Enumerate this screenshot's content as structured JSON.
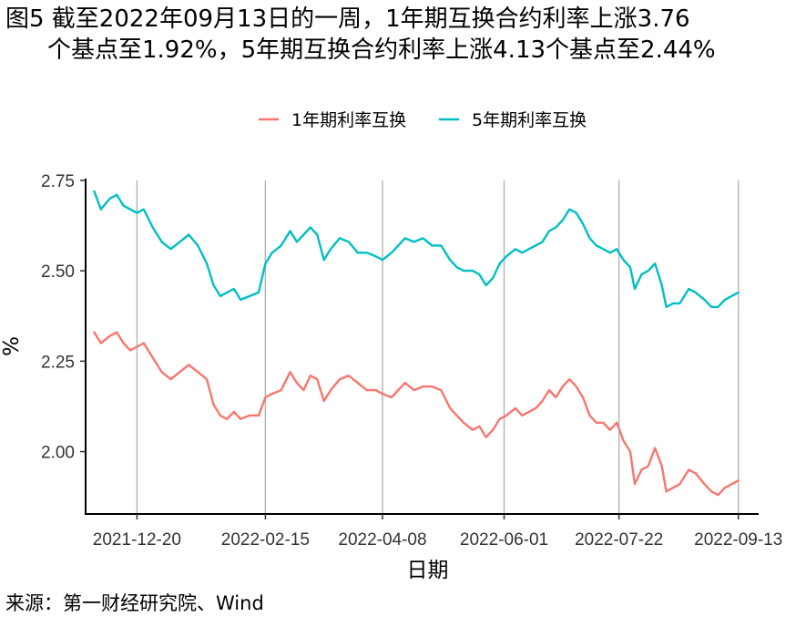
{
  "title": {
    "line1": "图5  截至2022年09月13日的一周，1年期互换合约利率上涨3.76",
    "line2": "个基点至1.92%，5年期互换合约利率上涨4.13个基点至2.44%"
  },
  "source": "来源：第一财经研究院、Wind",
  "chart_data": {
    "type": "line",
    "xlabel": "日期",
    "ylabel": "%",
    "x_tick_labels": [
      "2021-12-20",
      "2022-02-15",
      "2022-04-08",
      "2022-06-01",
      "2022-07-22",
      "2022-09-13"
    ],
    "y_ticks": [
      2.0,
      2.25,
      2.5,
      2.75
    ],
    "y_tick_labels": [
      "2.00",
      "2.25",
      "2.50",
      "2.75"
    ],
    "ylim": [
      1.83,
      2.77
    ],
    "xlim": [
      "2021-11-28",
      "2022-09-22"
    ],
    "grid": "vertical lines at x ticks",
    "legend_position": "top",
    "series": [
      {
        "name": "1年期利率互换",
        "color": "#F8766D",
        "points": [
          [
            "2021-12-01",
            2.33
          ],
          [
            "2021-12-04",
            2.3
          ],
          [
            "2021-12-08",
            2.32
          ],
          [
            "2021-12-11",
            2.33
          ],
          [
            "2021-12-14",
            2.3
          ],
          [
            "2021-12-17",
            2.28
          ],
          [
            "2021-12-20",
            2.29
          ],
          [
            "2021-12-23",
            2.3
          ],
          [
            "2021-12-27",
            2.26
          ],
          [
            "2021-12-31",
            2.22
          ],
          [
            "2022-01-04",
            2.2
          ],
          [
            "2022-01-08",
            2.22
          ],
          [
            "2022-01-12",
            2.24
          ],
          [
            "2022-01-16",
            2.22
          ],
          [
            "2022-01-20",
            2.2
          ],
          [
            "2022-01-23",
            2.13
          ],
          [
            "2022-01-26",
            2.1
          ],
          [
            "2022-01-29",
            2.09
          ],
          [
            "2022-02-01",
            2.11
          ],
          [
            "2022-02-04",
            2.09
          ],
          [
            "2022-02-08",
            2.1
          ],
          [
            "2022-02-12",
            2.1
          ],
          [
            "2022-02-15",
            2.15
          ],
          [
            "2022-02-18",
            2.16
          ],
          [
            "2022-02-22",
            2.17
          ],
          [
            "2022-02-26",
            2.22
          ],
          [
            "2022-03-01",
            2.19
          ],
          [
            "2022-03-04",
            2.17
          ],
          [
            "2022-03-07",
            2.21
          ],
          [
            "2022-03-10",
            2.2
          ],
          [
            "2022-03-13",
            2.14
          ],
          [
            "2022-03-16",
            2.17
          ],
          [
            "2022-03-20",
            2.2
          ],
          [
            "2022-03-24",
            2.21
          ],
          [
            "2022-03-28",
            2.19
          ],
          [
            "2022-04-01",
            2.17
          ],
          [
            "2022-04-05",
            2.17
          ],
          [
            "2022-04-08",
            2.16
          ],
          [
            "2022-04-12",
            2.15
          ],
          [
            "2022-04-15",
            2.17
          ],
          [
            "2022-04-18",
            2.19
          ],
          [
            "2022-04-22",
            2.17
          ],
          [
            "2022-04-26",
            2.18
          ],
          [
            "2022-04-30",
            2.18
          ],
          [
            "2022-05-04",
            2.17
          ],
          [
            "2022-05-08",
            2.12
          ],
          [
            "2022-05-11",
            2.1
          ],
          [
            "2022-05-14",
            2.08
          ],
          [
            "2022-05-18",
            2.06
          ],
          [
            "2022-05-21",
            2.07
          ],
          [
            "2022-05-24",
            2.04
          ],
          [
            "2022-05-27",
            2.06
          ],
          [
            "2022-05-30",
            2.09
          ],
          [
            "2022-06-02",
            2.1
          ],
          [
            "2022-06-06",
            2.12
          ],
          [
            "2022-06-09",
            2.1
          ],
          [
            "2022-06-12",
            2.11
          ],
          [
            "2022-06-15",
            2.12
          ],
          [
            "2022-06-18",
            2.14
          ],
          [
            "2022-06-21",
            2.17
          ],
          [
            "2022-06-24",
            2.15
          ],
          [
            "2022-06-27",
            2.18
          ],
          [
            "2022-06-30",
            2.2
          ],
          [
            "2022-07-03",
            2.18
          ],
          [
            "2022-07-06",
            2.15
          ],
          [
            "2022-07-09",
            2.1
          ],
          [
            "2022-07-12",
            2.08
          ],
          [
            "2022-07-15",
            2.08
          ],
          [
            "2022-07-18",
            2.06
          ],
          [
            "2022-07-21",
            2.08
          ],
          [
            "2022-07-24",
            2.03
          ],
          [
            "2022-07-27",
            2.0
          ],
          [
            "2022-07-29",
            1.91
          ],
          [
            "2022-08-01",
            1.95
          ],
          [
            "2022-08-04",
            1.96
          ],
          [
            "2022-08-07",
            2.01
          ],
          [
            "2022-08-10",
            1.96
          ],
          [
            "2022-08-12",
            1.89
          ],
          [
            "2022-08-15",
            1.9
          ],
          [
            "2022-08-18",
            1.91
          ],
          [
            "2022-08-22",
            1.95
          ],
          [
            "2022-08-25",
            1.94
          ],
          [
            "2022-08-29",
            1.91
          ],
          [
            "2022-09-01",
            1.89
          ],
          [
            "2022-09-04",
            1.88
          ],
          [
            "2022-09-07",
            1.9
          ],
          [
            "2022-09-10",
            1.91
          ],
          [
            "2022-09-13",
            1.92
          ]
        ]
      },
      {
        "name": "5年期利率互换",
        "color": "#00BFC4",
        "points": [
          [
            "2021-12-01",
            2.72
          ],
          [
            "2021-12-04",
            2.67
          ],
          [
            "2021-12-08",
            2.7
          ],
          [
            "2021-12-11",
            2.71
          ],
          [
            "2021-12-14",
            2.68
          ],
          [
            "2021-12-17",
            2.67
          ],
          [
            "2021-12-20",
            2.66
          ],
          [
            "2021-12-23",
            2.67
          ],
          [
            "2021-12-27",
            2.62
          ],
          [
            "2021-12-31",
            2.58
          ],
          [
            "2022-01-04",
            2.56
          ],
          [
            "2022-01-08",
            2.58
          ],
          [
            "2022-01-12",
            2.6
          ],
          [
            "2022-01-16",
            2.57
          ],
          [
            "2022-01-20",
            2.52
          ],
          [
            "2022-01-23",
            2.46
          ],
          [
            "2022-01-26",
            2.43
          ],
          [
            "2022-01-29",
            2.44
          ],
          [
            "2022-02-01",
            2.45
          ],
          [
            "2022-02-04",
            2.42
          ],
          [
            "2022-02-08",
            2.43
          ],
          [
            "2022-02-12",
            2.44
          ],
          [
            "2022-02-15",
            2.52
          ],
          [
            "2022-02-18",
            2.55
          ],
          [
            "2022-02-22",
            2.57
          ],
          [
            "2022-02-26",
            2.61
          ],
          [
            "2022-03-01",
            2.58
          ],
          [
            "2022-03-04",
            2.6
          ],
          [
            "2022-03-07",
            2.62
          ],
          [
            "2022-03-10",
            2.6
          ],
          [
            "2022-03-13",
            2.53
          ],
          [
            "2022-03-16",
            2.56
          ],
          [
            "2022-03-20",
            2.59
          ],
          [
            "2022-03-24",
            2.58
          ],
          [
            "2022-03-28",
            2.55
          ],
          [
            "2022-04-01",
            2.55
          ],
          [
            "2022-04-05",
            2.54
          ],
          [
            "2022-04-08",
            2.53
          ],
          [
            "2022-04-12",
            2.55
          ],
          [
            "2022-04-15",
            2.57
          ],
          [
            "2022-04-18",
            2.59
          ],
          [
            "2022-04-22",
            2.58
          ],
          [
            "2022-04-26",
            2.59
          ],
          [
            "2022-04-30",
            2.57
          ],
          [
            "2022-05-04",
            2.57
          ],
          [
            "2022-05-08",
            2.53
          ],
          [
            "2022-05-11",
            2.51
          ],
          [
            "2022-05-14",
            2.5
          ],
          [
            "2022-05-18",
            2.5
          ],
          [
            "2022-05-21",
            2.49
          ],
          [
            "2022-05-24",
            2.46
          ],
          [
            "2022-05-27",
            2.48
          ],
          [
            "2022-05-30",
            2.52
          ],
          [
            "2022-06-02",
            2.54
          ],
          [
            "2022-06-06",
            2.56
          ],
          [
            "2022-06-09",
            2.55
          ],
          [
            "2022-06-12",
            2.56
          ],
          [
            "2022-06-15",
            2.57
          ],
          [
            "2022-06-18",
            2.58
          ],
          [
            "2022-06-21",
            2.61
          ],
          [
            "2022-06-24",
            2.62
          ],
          [
            "2022-06-27",
            2.64
          ],
          [
            "2022-06-30",
            2.67
          ],
          [
            "2022-07-03",
            2.66
          ],
          [
            "2022-07-06",
            2.63
          ],
          [
            "2022-07-09",
            2.59
          ],
          [
            "2022-07-12",
            2.57
          ],
          [
            "2022-07-15",
            2.56
          ],
          [
            "2022-07-18",
            2.55
          ],
          [
            "2022-07-21",
            2.56
          ],
          [
            "2022-07-24",
            2.53
          ],
          [
            "2022-07-27",
            2.51
          ],
          [
            "2022-07-29",
            2.45
          ],
          [
            "2022-08-01",
            2.49
          ],
          [
            "2022-08-04",
            2.5
          ],
          [
            "2022-08-07",
            2.52
          ],
          [
            "2022-08-10",
            2.46
          ],
          [
            "2022-08-12",
            2.4
          ],
          [
            "2022-08-15",
            2.41
          ],
          [
            "2022-08-18",
            2.41
          ],
          [
            "2022-08-22",
            2.45
          ],
          [
            "2022-08-25",
            2.44
          ],
          [
            "2022-08-29",
            2.42
          ],
          [
            "2022-09-01",
            2.4
          ],
          [
            "2022-09-04",
            2.4
          ],
          [
            "2022-09-07",
            2.42
          ],
          [
            "2022-09-10",
            2.43
          ],
          [
            "2022-09-13",
            2.44
          ]
        ]
      }
    ]
  }
}
